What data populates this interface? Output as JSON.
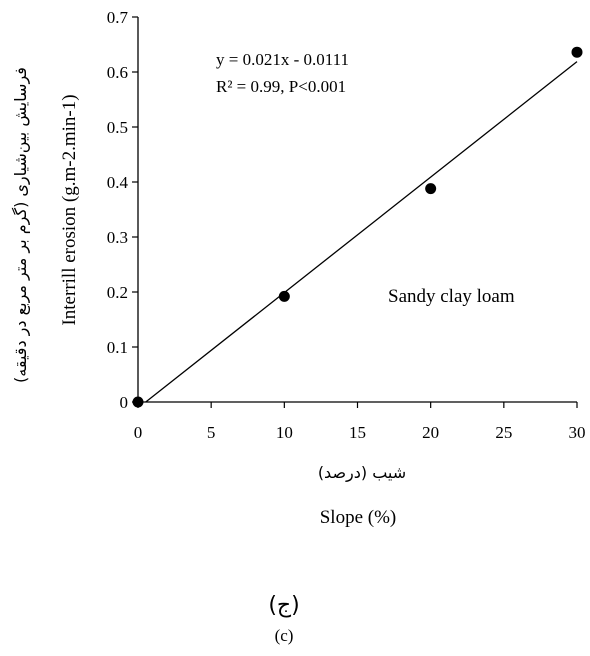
{
  "chart_data": {
    "type": "scatter",
    "x": [
      0,
      10,
      20,
      30
    ],
    "y": [
      0,
      0.192,
      0.388,
      0.636
    ],
    "xlim": [
      0,
      30
    ],
    "ylim": [
      0,
      0.7
    ],
    "xticks": [
      "0",
      "5",
      "10",
      "15",
      "20",
      "25",
      "30"
    ],
    "yticks": [
      "0",
      "0.1",
      "0.2",
      "0.3",
      "0.4",
      "0.5",
      "0.6",
      "0.7"
    ],
    "xlabel": "Slope (%)",
    "xlabel_fa": "شیب (درصد)",
    "ylabel": "Interrill erosion (g.m-2.min-1)",
    "ylabel_fa": "فرسایش بین‌شیاری (گرم بر متر مربع در دقیقه)",
    "trendline": {
      "slope": 0.021,
      "intercept": -0.0111
    },
    "equation": "y = 0.021x - 0.0111",
    "r2_text": "R² = 0.99, P<0.001",
    "annotation": "Sandy clay loam",
    "grid": false,
    "legend": false
  },
  "caption": {
    "fa": "(ج)",
    "en": "(c)"
  }
}
